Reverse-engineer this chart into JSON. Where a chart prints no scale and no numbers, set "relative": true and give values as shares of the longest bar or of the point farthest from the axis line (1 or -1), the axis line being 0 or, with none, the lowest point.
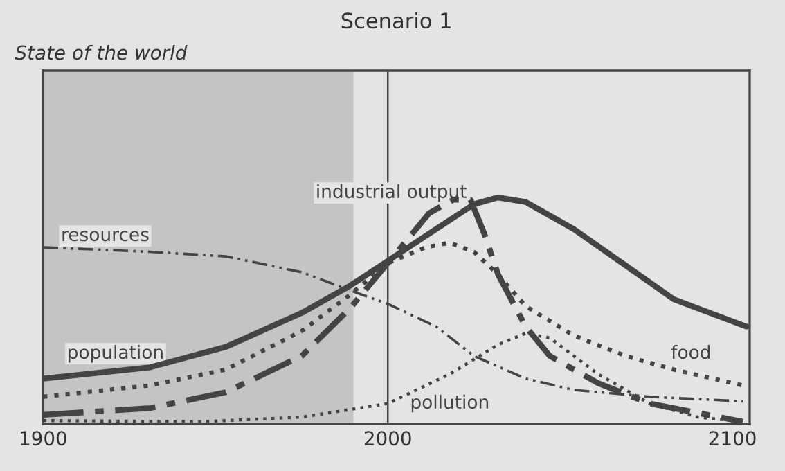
{
  "chart_data": {
    "type": "line",
    "title": "Scenario 1",
    "annotations": [
      "State of the world"
    ],
    "relative": true,
    "xlim": [
      1900,
      2105
    ],
    "xticks": [
      1900,
      2000,
      2100
    ],
    "grid": false,
    "legend": false,
    "marker": "none",
    "bands": [
      {
        "axis": "x",
        "from": 1900,
        "to": 1990,
        "color": "#c4c4c4"
      }
    ],
    "ref_lines": [
      {
        "axis": "x",
        "value": 2000,
        "color": "#444444"
      }
    ],
    "series": [
      {
        "name": "resources",
        "color": "#444444",
        "line_style": "dashdotdot",
        "x": [
          1900,
          1931,
          1953,
          1975,
          1989,
          2000,
          2014,
          2025,
          2040,
          2054,
          2076,
          2103
        ],
        "values": [
          0.78,
          0.76,
          0.74,
          0.67,
          0.59,
          0.53,
          0.43,
          0.3,
          0.2,
          0.15,
          0.12,
          0.1
        ]
      },
      {
        "name": "population",
        "color": "#444444",
        "line_style": "solid",
        "x": [
          1900,
          1931,
          1953,
          1975,
          1989,
          2000,
          2014,
          2025,
          2032,
          2040,
          2054,
          2069,
          2083,
          2104
        ],
        "values": [
          0.2,
          0.25,
          0.34,
          0.49,
          0.61,
          0.72,
          0.86,
          0.97,
          1.0,
          0.98,
          0.86,
          0.7,
          0.55,
          0.43
        ]
      },
      {
        "name": "industrial output",
        "color": "#444444",
        "line_style": "dashdot",
        "x": [
          1900,
          1931,
          1953,
          1975,
          1989,
          2000,
          2012,
          2019,
          2024,
          2028,
          2032,
          2040,
          2047,
          2061,
          2076,
          2103
        ],
        "values": [
          0.04,
          0.07,
          0.14,
          0.3,
          0.51,
          0.71,
          0.93,
          0.99,
          0.99,
          0.84,
          0.66,
          0.43,
          0.3,
          0.18,
          0.09,
          0.01
        ]
      },
      {
        "name": "food",
        "color": "#444444",
        "line_style": "dotted",
        "x": [
          1900,
          1931,
          1953,
          1975,
          1989,
          2000,
          2011,
          2018,
          2025,
          2032,
          2040,
          2054,
          2069,
          2083,
          2103
        ],
        "values": [
          0.12,
          0.17,
          0.24,
          0.41,
          0.57,
          0.71,
          0.78,
          0.8,
          0.76,
          0.66,
          0.52,
          0.39,
          0.3,
          0.24,
          0.17
        ]
      },
      {
        "name": "pollution",
        "color": "#444444",
        "line_style": "dotted",
        "x": [
          1900,
          1946,
          1975,
          2000,
          2018,
          2032,
          2040,
          2047,
          2061,
          2076,
          2090,
          2103
        ],
        "values": [
          0.015,
          0.01,
          0.03,
          0.09,
          0.22,
          0.35,
          0.4,
          0.38,
          0.22,
          0.09,
          0.03,
          0.01
        ]
      }
    ]
  }
}
